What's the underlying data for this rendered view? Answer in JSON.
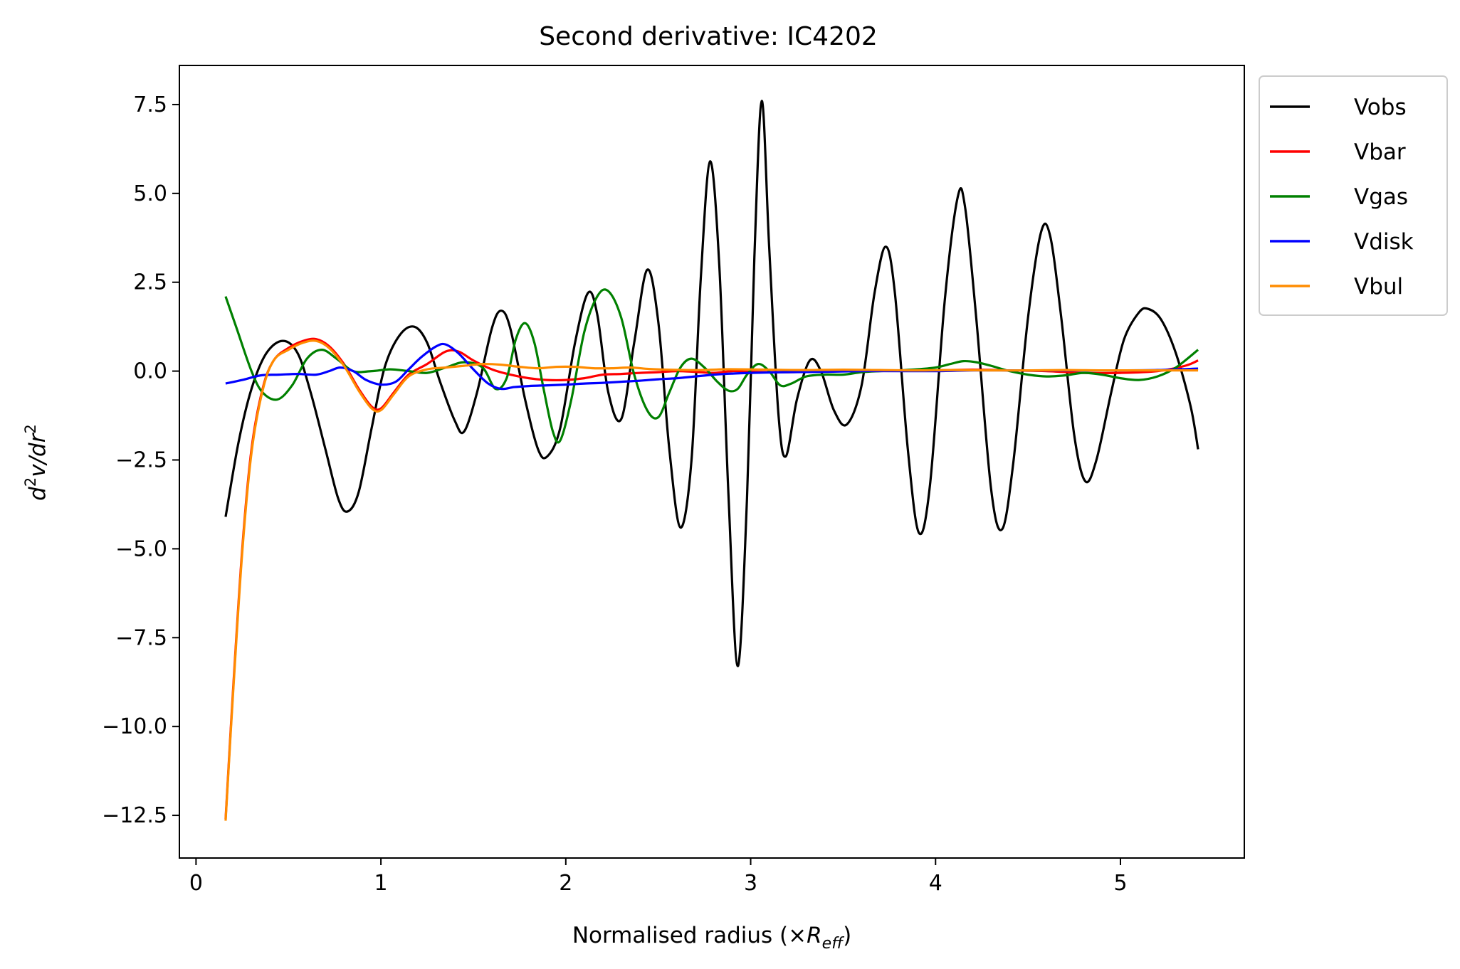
{
  "chart_data": {
    "type": "line",
    "title": "Second derivative: IC4202",
    "xlabel": "Normalised radius (×R_eff)",
    "xlabel_parts": {
      "prefix": "Normalised radius (×",
      "italic": "R",
      "sub": "eff",
      "suffix": ")"
    },
    "ylabel": "d²v/dr²",
    "ylabel_parts": {
      "d1": "d",
      "s1": "2",
      "v": "v/dr",
      "s2": "2"
    },
    "xlim": [
      -0.09,
      5.67
    ],
    "ylim": [
      -13.7,
      8.6
    ],
    "xticks": [
      0,
      1,
      2,
      3,
      4,
      5
    ],
    "xtick_labels": [
      "0",
      "1",
      "2",
      "3",
      "4",
      "5"
    ],
    "yticks": [
      7.5,
      5.0,
      2.5,
      0.0,
      -2.5,
      -5.0,
      -7.5,
      -10.0,
      -12.5
    ],
    "ytick_labels": [
      "7.5",
      "5.0",
      "2.5",
      "0.0",
      "−2.5",
      "−5.0",
      "−7.5",
      "−10.0",
      "−12.5"
    ],
    "grid": false,
    "legend_position": "outside-top-right",
    "series": [
      {
        "name": "Vobs",
        "color": "#000000",
        "points": [
          [
            0.16,
            -4.1
          ],
          [
            0.23,
            -2.0
          ],
          [
            0.3,
            -0.5
          ],
          [
            0.38,
            0.5
          ],
          [
            0.47,
            0.85
          ],
          [
            0.55,
            0.5
          ],
          [
            0.62,
            -0.6
          ],
          [
            0.7,
            -2.2
          ],
          [
            0.77,
            -3.6
          ],
          [
            0.82,
            -3.95
          ],
          [
            0.88,
            -3.4
          ],
          [
            0.95,
            -1.6
          ],
          [
            1.02,
            0.1
          ],
          [
            1.1,
            1.0
          ],
          [
            1.18,
            1.25
          ],
          [
            1.25,
            0.8
          ],
          [
            1.32,
            -0.3
          ],
          [
            1.4,
            -1.4
          ],
          [
            1.45,
            -1.7
          ],
          [
            1.52,
            -0.6
          ],
          [
            1.6,
            1.2
          ],
          [
            1.65,
            1.7
          ],
          [
            1.7,
            1.2
          ],
          [
            1.78,
            -0.8
          ],
          [
            1.85,
            -2.2
          ],
          [
            1.9,
            -2.4
          ],
          [
            1.97,
            -1.6
          ],
          [
            2.05,
            0.8
          ],
          [
            2.12,
            2.2
          ],
          [
            2.17,
            1.6
          ],
          [
            2.23,
            -0.6
          ],
          [
            2.3,
            -1.35
          ],
          [
            2.37,
            0.8
          ],
          [
            2.44,
            2.85
          ],
          [
            2.5,
            1.4
          ],
          [
            2.56,
            -2.2
          ],
          [
            2.62,
            -4.4
          ],
          [
            2.68,
            -2.5
          ],
          [
            2.73,
            2.6
          ],
          [
            2.78,
            5.9
          ],
          [
            2.83,
            3.0
          ],
          [
            2.88,
            -3.5
          ],
          [
            2.93,
            -8.3
          ],
          [
            2.98,
            -3.6
          ],
          [
            3.02,
            3.2
          ],
          [
            3.06,
            7.6
          ],
          [
            3.1,
            3.5
          ],
          [
            3.15,
            -1.2
          ],
          [
            3.19,
            -2.4
          ],
          [
            3.25,
            -0.8
          ],
          [
            3.32,
            0.3
          ],
          [
            3.38,
            0.0
          ],
          [
            3.45,
            -1.1
          ],
          [
            3.52,
            -1.5
          ],
          [
            3.6,
            -0.4
          ],
          [
            3.67,
            2.2
          ],
          [
            3.73,
            3.5
          ],
          [
            3.78,
            2.2
          ],
          [
            3.85,
            -2.2
          ],
          [
            3.91,
            -4.55
          ],
          [
            3.97,
            -3.2
          ],
          [
            4.05,
            2.0
          ],
          [
            4.12,
            4.9
          ],
          [
            4.16,
            4.6
          ],
          [
            4.22,
            1.5
          ],
          [
            4.3,
            -3.3
          ],
          [
            4.36,
            -4.45
          ],
          [
            4.42,
            -2.6
          ],
          [
            4.5,
            1.5
          ],
          [
            4.57,
            3.9
          ],
          [
            4.62,
            3.8
          ],
          [
            4.68,
            1.5
          ],
          [
            4.75,
            -1.8
          ],
          [
            4.81,
            -3.1
          ],
          [
            4.87,
            -2.5
          ],
          [
            4.95,
            -0.6
          ],
          [
            5.02,
            0.9
          ],
          [
            5.1,
            1.65
          ],
          [
            5.15,
            1.75
          ],
          [
            5.22,
            1.45
          ],
          [
            5.3,
            0.5
          ],
          [
            5.38,
            -1.0
          ],
          [
            5.42,
            -2.2
          ]
        ]
      },
      {
        "name": "Vbar",
        "color": "#ff0000",
        "points": [
          [
            0.16,
            -12.6
          ],
          [
            0.2,
            -9.0
          ],
          [
            0.25,
            -5.0
          ],
          [
            0.3,
            -2.2
          ],
          [
            0.36,
            -0.5
          ],
          [
            0.42,
            0.3
          ],
          [
            0.5,
            0.65
          ],
          [
            0.58,
            0.85
          ],
          [
            0.65,
            0.9
          ],
          [
            0.72,
            0.7
          ],
          [
            0.8,
            0.2
          ],
          [
            0.88,
            -0.5
          ],
          [
            0.95,
            -1.0
          ],
          [
            1.0,
            -1.05
          ],
          [
            1.07,
            -0.6
          ],
          [
            1.15,
            -0.1
          ],
          [
            1.25,
            0.2
          ],
          [
            1.35,
            0.55
          ],
          [
            1.42,
            0.55
          ],
          [
            1.5,
            0.3
          ],
          [
            1.6,
            0.05
          ],
          [
            1.7,
            -0.1
          ],
          [
            1.8,
            -0.2
          ],
          [
            1.9,
            -0.25
          ],
          [
            2.0,
            -0.25
          ],
          [
            2.1,
            -0.2
          ],
          [
            2.2,
            -0.1
          ],
          [
            2.3,
            -0.08
          ],
          [
            2.4,
            -0.05
          ],
          [
            2.5,
            -0.03
          ],
          [
            2.6,
            0.0
          ],
          [
            2.7,
            -0.02
          ],
          [
            2.8,
            -0.05
          ],
          [
            2.9,
            0.0
          ],
          [
            3.0,
            -0.02
          ],
          [
            3.2,
            -0.03
          ],
          [
            3.4,
            -0.01
          ],
          [
            3.6,
            0.0
          ],
          [
            3.8,
            0.01
          ],
          [
            4.0,
            0.02
          ],
          [
            4.2,
            0.04
          ],
          [
            4.4,
            0.02
          ],
          [
            4.6,
            0.0
          ],
          [
            4.8,
            -0.05
          ],
          [
            5.0,
            -0.05
          ],
          [
            5.2,
            0.0
          ],
          [
            5.35,
            0.15
          ],
          [
            5.42,
            0.3
          ]
        ]
      },
      {
        "name": "Vgas",
        "color": "#008000",
        "points": [
          [
            0.16,
            2.1
          ],
          [
            0.22,
            1.2
          ],
          [
            0.3,
            0.0
          ],
          [
            0.36,
            -0.6
          ],
          [
            0.44,
            -0.8
          ],
          [
            0.52,
            -0.4
          ],
          [
            0.6,
            0.35
          ],
          [
            0.68,
            0.6
          ],
          [
            0.76,
            0.35
          ],
          [
            0.85,
            0.0
          ],
          [
            0.95,
            0.0
          ],
          [
            1.05,
            0.05
          ],
          [
            1.15,
            0.0
          ],
          [
            1.25,
            -0.05
          ],
          [
            1.35,
            0.1
          ],
          [
            1.45,
            0.25
          ],
          [
            1.55,
            0.1
          ],
          [
            1.62,
            -0.5
          ],
          [
            1.68,
            -0.2
          ],
          [
            1.73,
            0.9
          ],
          [
            1.78,
            1.35
          ],
          [
            1.83,
            0.8
          ],
          [
            1.88,
            -0.5
          ],
          [
            1.93,
            -1.7
          ],
          [
            1.97,
            -1.95
          ],
          [
            2.03,
            -0.8
          ],
          [
            2.1,
            1.1
          ],
          [
            2.17,
            2.1
          ],
          [
            2.23,
            2.25
          ],
          [
            2.3,
            1.5
          ],
          [
            2.37,
            -0.1
          ],
          [
            2.44,
            -1.1
          ],
          [
            2.5,
            -1.3
          ],
          [
            2.56,
            -0.6
          ],
          [
            2.62,
            0.1
          ],
          [
            2.68,
            0.35
          ],
          [
            2.75,
            0.1
          ],
          [
            2.82,
            -0.3
          ],
          [
            2.88,
            -0.55
          ],
          [
            2.93,
            -0.5
          ],
          [
            2.98,
            -0.1
          ],
          [
            3.04,
            0.2
          ],
          [
            3.1,
            0.0
          ],
          [
            3.16,
            -0.4
          ],
          [
            3.22,
            -0.35
          ],
          [
            3.3,
            -0.15
          ],
          [
            3.4,
            -0.1
          ],
          [
            3.5,
            -0.1
          ],
          [
            3.6,
            -0.03
          ],
          [
            3.7,
            0.0
          ],
          [
            3.8,
            0.02
          ],
          [
            3.9,
            0.05
          ],
          [
            4.0,
            0.1
          ],
          [
            4.08,
            0.2
          ],
          [
            4.15,
            0.28
          ],
          [
            4.22,
            0.25
          ],
          [
            4.3,
            0.15
          ],
          [
            4.4,
            0.0
          ],
          [
            4.5,
            -0.1
          ],
          [
            4.6,
            -0.15
          ],
          [
            4.7,
            -0.12
          ],
          [
            4.8,
            -0.05
          ],
          [
            4.9,
            -0.1
          ],
          [
            5.0,
            -0.2
          ],
          [
            5.1,
            -0.25
          ],
          [
            5.2,
            -0.15
          ],
          [
            5.3,
            0.1
          ],
          [
            5.42,
            0.6
          ]
        ]
      },
      {
        "name": "Vdisk",
        "color": "#0000ff",
        "points": [
          [
            0.16,
            -0.35
          ],
          [
            0.25,
            -0.25
          ],
          [
            0.35,
            -0.12
          ],
          [
            0.45,
            -0.1
          ],
          [
            0.55,
            -0.08
          ],
          [
            0.65,
            -0.1
          ],
          [
            0.72,
            0.0
          ],
          [
            0.78,
            0.1
          ],
          [
            0.85,
            0.0
          ],
          [
            0.92,
            -0.25
          ],
          [
            1.0,
            -0.38
          ],
          [
            1.08,
            -0.3
          ],
          [
            1.15,
            0.05
          ],
          [
            1.22,
            0.4
          ],
          [
            1.3,
            0.7
          ],
          [
            1.35,
            0.75
          ],
          [
            1.42,
            0.5
          ],
          [
            1.5,
            0.05
          ],
          [
            1.58,
            -0.35
          ],
          [
            1.65,
            -0.5
          ],
          [
            1.72,
            -0.45
          ],
          [
            1.8,
            -0.42
          ],
          [
            1.9,
            -0.4
          ],
          [
            2.0,
            -0.38
          ],
          [
            2.1,
            -0.35
          ],
          [
            2.2,
            -0.33
          ],
          [
            2.3,
            -0.3
          ],
          [
            2.4,
            -0.27
          ],
          [
            2.5,
            -0.23
          ],
          [
            2.6,
            -0.2
          ],
          [
            2.7,
            -0.15
          ],
          [
            2.8,
            -0.1
          ],
          [
            2.9,
            -0.07
          ],
          [
            3.0,
            -0.05
          ],
          [
            3.2,
            -0.03
          ],
          [
            3.4,
            -0.02
          ],
          [
            3.6,
            0.0
          ],
          [
            3.8,
            0.0
          ],
          [
            4.0,
            0.0
          ],
          [
            4.2,
            0.02
          ],
          [
            4.4,
            0.02
          ],
          [
            4.6,
            0.02
          ],
          [
            4.8,
            0.02
          ],
          [
            5.0,
            0.02
          ],
          [
            5.2,
            0.03
          ],
          [
            5.42,
            0.07
          ]
        ]
      },
      {
        "name": "Vbul",
        "color": "#ff8c00",
        "points": [
          [
            0.16,
            -12.65
          ],
          [
            0.2,
            -9.1
          ],
          [
            0.25,
            -5.1
          ],
          [
            0.3,
            -2.3
          ],
          [
            0.36,
            -0.55
          ],
          [
            0.42,
            0.3
          ],
          [
            0.5,
            0.6
          ],
          [
            0.58,
            0.8
          ],
          [
            0.65,
            0.85
          ],
          [
            0.72,
            0.65
          ],
          [
            0.8,
            0.15
          ],
          [
            0.88,
            -0.55
          ],
          [
            0.95,
            -1.05
          ],
          [
            1.0,
            -1.1
          ],
          [
            1.07,
            -0.65
          ],
          [
            1.15,
            -0.15
          ],
          [
            1.25,
            0.05
          ],
          [
            1.35,
            0.1
          ],
          [
            1.45,
            0.15
          ],
          [
            1.55,
            0.2
          ],
          [
            1.65,
            0.18
          ],
          [
            1.75,
            0.12
          ],
          [
            1.85,
            0.08
          ],
          [
            1.95,
            0.12
          ],
          [
            2.05,
            0.12
          ],
          [
            2.15,
            0.08
          ],
          [
            2.25,
            0.08
          ],
          [
            2.35,
            0.1
          ],
          [
            2.45,
            0.06
          ],
          [
            2.55,
            0.04
          ],
          [
            2.65,
            0.03
          ],
          [
            2.75,
            0.03
          ],
          [
            2.85,
            0.05
          ],
          [
            2.95,
            0.05
          ],
          [
            3.1,
            0.04
          ],
          [
            3.3,
            0.03
          ],
          [
            3.5,
            0.04
          ],
          [
            3.7,
            0.03
          ],
          [
            3.9,
            0.02
          ],
          [
            4.1,
            0.03
          ],
          [
            4.3,
            0.02
          ],
          [
            4.5,
            0.02
          ],
          [
            4.7,
            0.03
          ],
          [
            4.9,
            0.02
          ],
          [
            5.1,
            0.02
          ],
          [
            5.3,
            0.02
          ],
          [
            5.42,
            0.02
          ]
        ]
      }
    ]
  }
}
